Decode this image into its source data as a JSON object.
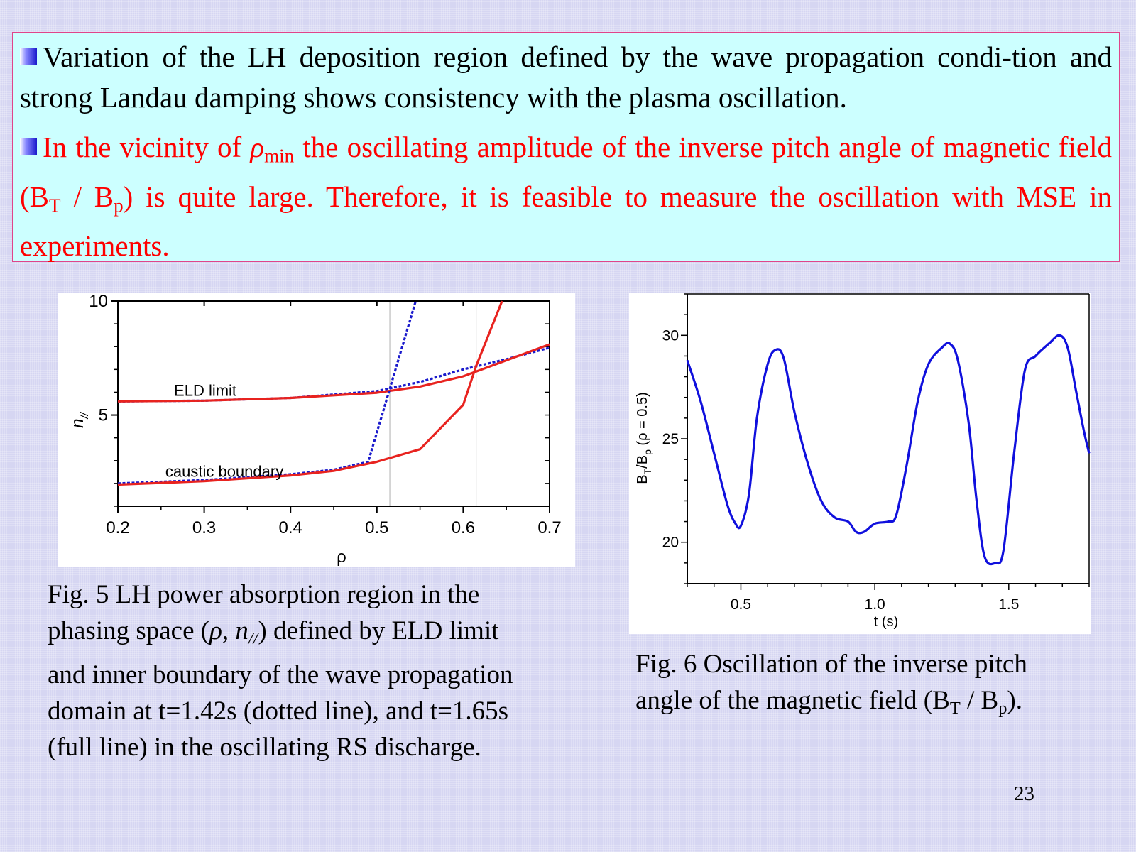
{
  "bullets": {
    "first": {
      "text": "Variation of the LH deposition region defined by the wave propagation condi-tion and strong Landau damping shows consistency with the plasma oscillation.",
      "color": "#000000"
    },
    "second": {
      "part1": "In the vicinity of ",
      "rho": "ρ",
      "rho_sub": "min",
      "part2": " the oscillating amplitude of the inverse pitch angle of magnetic field (B",
      "sub_T": "T",
      "part3": " / B",
      "sub_p": "p",
      "part4": ") is quite large. Therefore, it is feasible to measure the oscillation with MSE in experiments.",
      "color": "#ff0000"
    }
  },
  "fig5_caption": {
    "line1": "Fig. 5 LH power absorption region in the",
    "line2_a": "phasing space (",
    "rho": "ρ",
    "line2_b": ", ",
    "n": "n",
    "n_sub": "//",
    "line2_c": ") defined by ELD limit",
    "line3": "and inner boundary of the wave propagation",
    "line4": "domain at t=1.42s (dotted line), and t=1.65s",
    "line5": "(full line) in the oscillating RS discharge."
  },
  "fig6_caption": {
    "line1": "Fig. 6 Oscillation of the inverse pitch",
    "line2_a": "angle of the magnetic field (B",
    "sub_T": "T",
    "line2_b": " / B",
    "sub_p": "p",
    "line2_c": ")."
  },
  "page_number": "23",
  "chart_data": [
    {
      "type": "line",
      "title": "",
      "xlabel": "ρ",
      "ylabel": "n",
      "ylabel_sub": "//",
      "xlim": [
        0.2,
        0.7
      ],
      "ylim": [
        1,
        10
      ],
      "x_ticks": [
        "0.2",
        "0.3",
        "0.4",
        "0.5",
        "0.6",
        "0.7"
      ],
      "y_ticks": [
        "5",
        "10"
      ],
      "grid": false,
      "annotations": [
        {
          "text": "ELD limit",
          "x": 0.265,
          "y": 5.85
        },
        {
          "text": "caustic boundary",
          "x": 0.255,
          "y": 2.3
        }
      ],
      "vertical_lines": [
        0.515,
        0.615
      ],
      "series": [
        {
          "style": "dotted",
          "color": "#1a1acc",
          "points": [
            [
              0.2,
              5.6
            ],
            [
              0.3,
              5.63
            ],
            [
              0.4,
              5.75
            ],
            [
              0.5,
              6.05
            ],
            [
              0.55,
              6.45
            ],
            [
              0.6,
              7.0
            ],
            [
              0.65,
              7.45
            ],
            [
              0.7,
              7.95
            ]
          ]
        },
        {
          "style": "solid",
          "color": "#e8231f",
          "points": [
            [
              0.2,
              5.6
            ],
            [
              0.3,
              5.63
            ],
            [
              0.4,
              5.75
            ],
            [
              0.5,
              5.98
            ],
            [
              0.55,
              6.25
            ],
            [
              0.6,
              6.7
            ],
            [
              0.65,
              7.4
            ],
            [
              0.7,
              8.1
            ]
          ]
        },
        {
          "style": "dotted",
          "color": "#1a1acc",
          "points": [
            [
              0.2,
              2.0
            ],
            [
              0.3,
              2.15
            ],
            [
              0.4,
              2.4
            ],
            [
              0.45,
              2.6
            ],
            [
              0.49,
              2.95
            ],
            [
              0.515,
              6.15
            ],
            [
              0.545,
              10.0
            ]
          ]
        },
        {
          "style": "solid",
          "color": "#e8231f",
          "points": [
            [
              0.2,
              1.95
            ],
            [
              0.3,
              2.1
            ],
            [
              0.4,
              2.35
            ],
            [
              0.45,
              2.55
            ],
            [
              0.5,
              2.95
            ],
            [
              0.55,
              3.5
            ],
            [
              0.6,
              5.45
            ],
            [
              0.615,
              7.15
            ],
            [
              0.645,
              10.0
            ]
          ]
        }
      ]
    },
    {
      "type": "line",
      "title": "",
      "xlabel": "t (s)",
      "ylabel": "B",
      "ylabel_sub1": "T",
      "ylabel_mid": "/B",
      "ylabel_sub2": "p",
      "ylabel_tail": " (ρ = 0.5)",
      "xlim": [
        0.3,
        1.8
      ],
      "ylim": [
        18,
        32
      ],
      "x_ticks": [
        "0.5",
        "1.0",
        "1.5"
      ],
      "y_ticks": [
        "20",
        "25",
        "30"
      ],
      "grid": false,
      "series": [
        {
          "color": "#1010dd",
          "points": [
            [
              0.3,
              28.8
            ],
            [
              0.35,
              26.8
            ],
            [
              0.4,
              24.3
            ],
            [
              0.45,
              21.8
            ],
            [
              0.48,
              20.9
            ],
            [
              0.5,
              20.8
            ],
            [
              0.53,
              22.3
            ],
            [
              0.56,
              26.0
            ],
            [
              0.6,
              28.6
            ],
            [
              0.63,
              29.3
            ],
            [
              0.66,
              28.9
            ],
            [
              0.7,
              26.3
            ],
            [
              0.75,
              23.8
            ],
            [
              0.8,
              22.0
            ],
            [
              0.85,
              21.2
            ],
            [
              0.9,
              21.0
            ],
            [
              0.93,
              20.5
            ],
            [
              0.96,
              20.5
            ],
            [
              1.0,
              20.9
            ],
            [
              1.05,
              21.0
            ],
            [
              1.08,
              21.3
            ],
            [
              1.12,
              23.8
            ],
            [
              1.16,
              26.8
            ],
            [
              1.2,
              28.6
            ],
            [
              1.25,
              29.4
            ],
            [
              1.28,
              29.6
            ],
            [
              1.31,
              28.8
            ],
            [
              1.35,
              25.8
            ],
            [
              1.38,
              22.0
            ],
            [
              1.41,
              19.3
            ],
            [
              1.45,
              19.0
            ],
            [
              1.48,
              19.6
            ],
            [
              1.52,
              24.3
            ],
            [
              1.56,
              28.3
            ],
            [
              1.6,
              29.0
            ],
            [
              1.65,
              29.6
            ],
            [
              1.69,
              30.0
            ],
            [
              1.72,
              29.4
            ],
            [
              1.75,
              27.4
            ],
            [
              1.78,
              25.4
            ],
            [
              1.8,
              24.3
            ]
          ]
        }
      ]
    }
  ]
}
